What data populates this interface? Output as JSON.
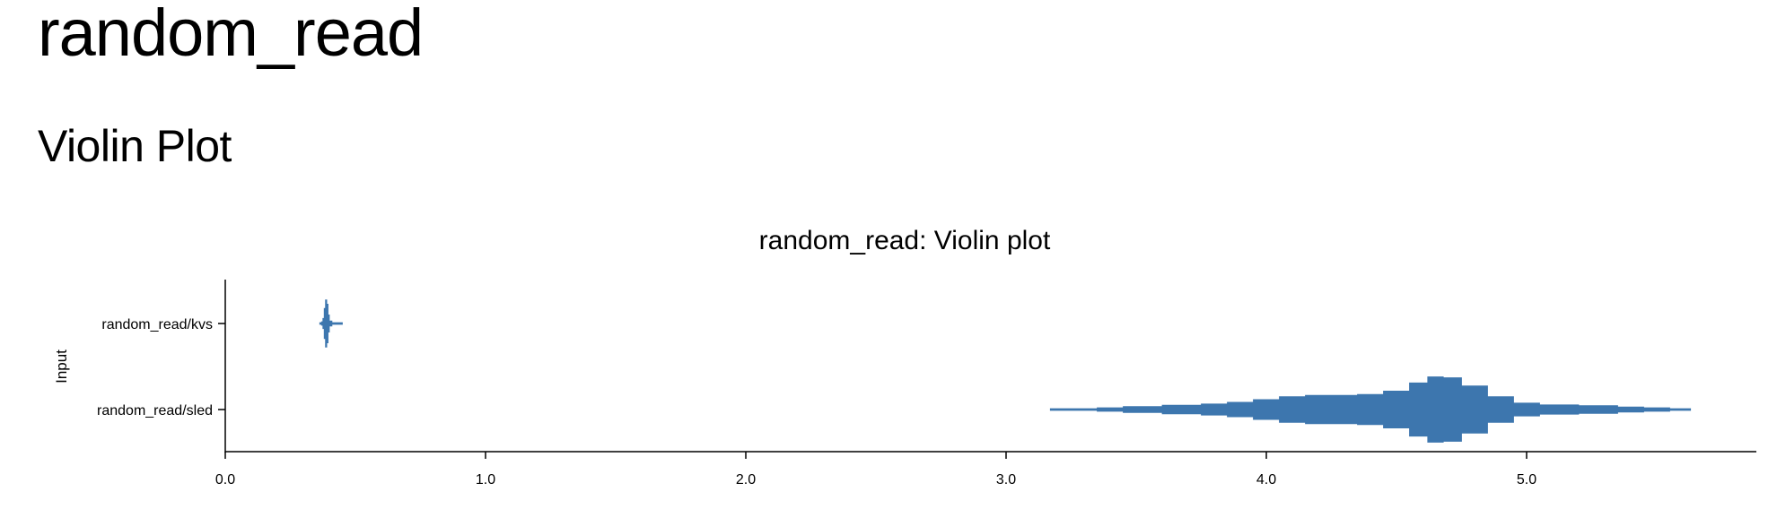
{
  "page": {
    "title": "random_read",
    "section_heading": "Violin Plot"
  },
  "chart_data": {
    "type": "violin",
    "orientation": "horizontal",
    "title": "random_read: Violin plot",
    "xlabel": "",
    "ylabel": "Input",
    "xlim": [
      0.0,
      5.88
    ],
    "xticks": [
      "0.0",
      "1.0",
      "2.0",
      "3.0",
      "4.0",
      "5.0"
    ],
    "color": "#3d76ae",
    "categories": [
      "random_read/kvs",
      "random_read/sled"
    ],
    "series": [
      {
        "name": "random_read/kvs",
        "density": [
          [
            0.363,
            0.0
          ],
          [
            0.37,
            0.04
          ],
          [
            0.375,
            0.12
          ],
          [
            0.38,
            0.35
          ],
          [
            0.385,
            0.55
          ],
          [
            0.39,
            0.45
          ],
          [
            0.395,
            0.2
          ],
          [
            0.4,
            0.06
          ],
          [
            0.41,
            0.02
          ],
          [
            0.42,
            0.0
          ],
          [
            0.44,
            0.0
          ],
          [
            0.447,
            0.02
          ],
          [
            0.45,
            0.0
          ]
        ]
      },
      {
        "name": "random_read/sled",
        "density": [
          [
            3.17,
            0.0
          ],
          [
            3.2,
            0.02
          ],
          [
            3.35,
            0.04
          ],
          [
            3.45,
            0.07
          ],
          [
            3.6,
            0.1
          ],
          [
            3.75,
            0.13
          ],
          [
            3.85,
            0.17
          ],
          [
            3.95,
            0.23
          ],
          [
            4.05,
            0.3
          ],
          [
            4.15,
            0.33
          ],
          [
            4.25,
            0.33
          ],
          [
            4.35,
            0.35
          ],
          [
            4.45,
            0.43
          ],
          [
            4.55,
            0.62
          ],
          [
            4.62,
            0.76
          ],
          [
            4.68,
            0.74
          ],
          [
            4.75,
            0.55
          ],
          [
            4.85,
            0.3
          ],
          [
            4.95,
            0.15
          ],
          [
            5.05,
            0.11
          ],
          [
            5.2,
            0.09
          ],
          [
            5.35,
            0.06
          ],
          [
            5.45,
            0.04
          ],
          [
            5.55,
            0.02
          ],
          [
            5.63,
            0.0
          ]
        ]
      }
    ]
  }
}
